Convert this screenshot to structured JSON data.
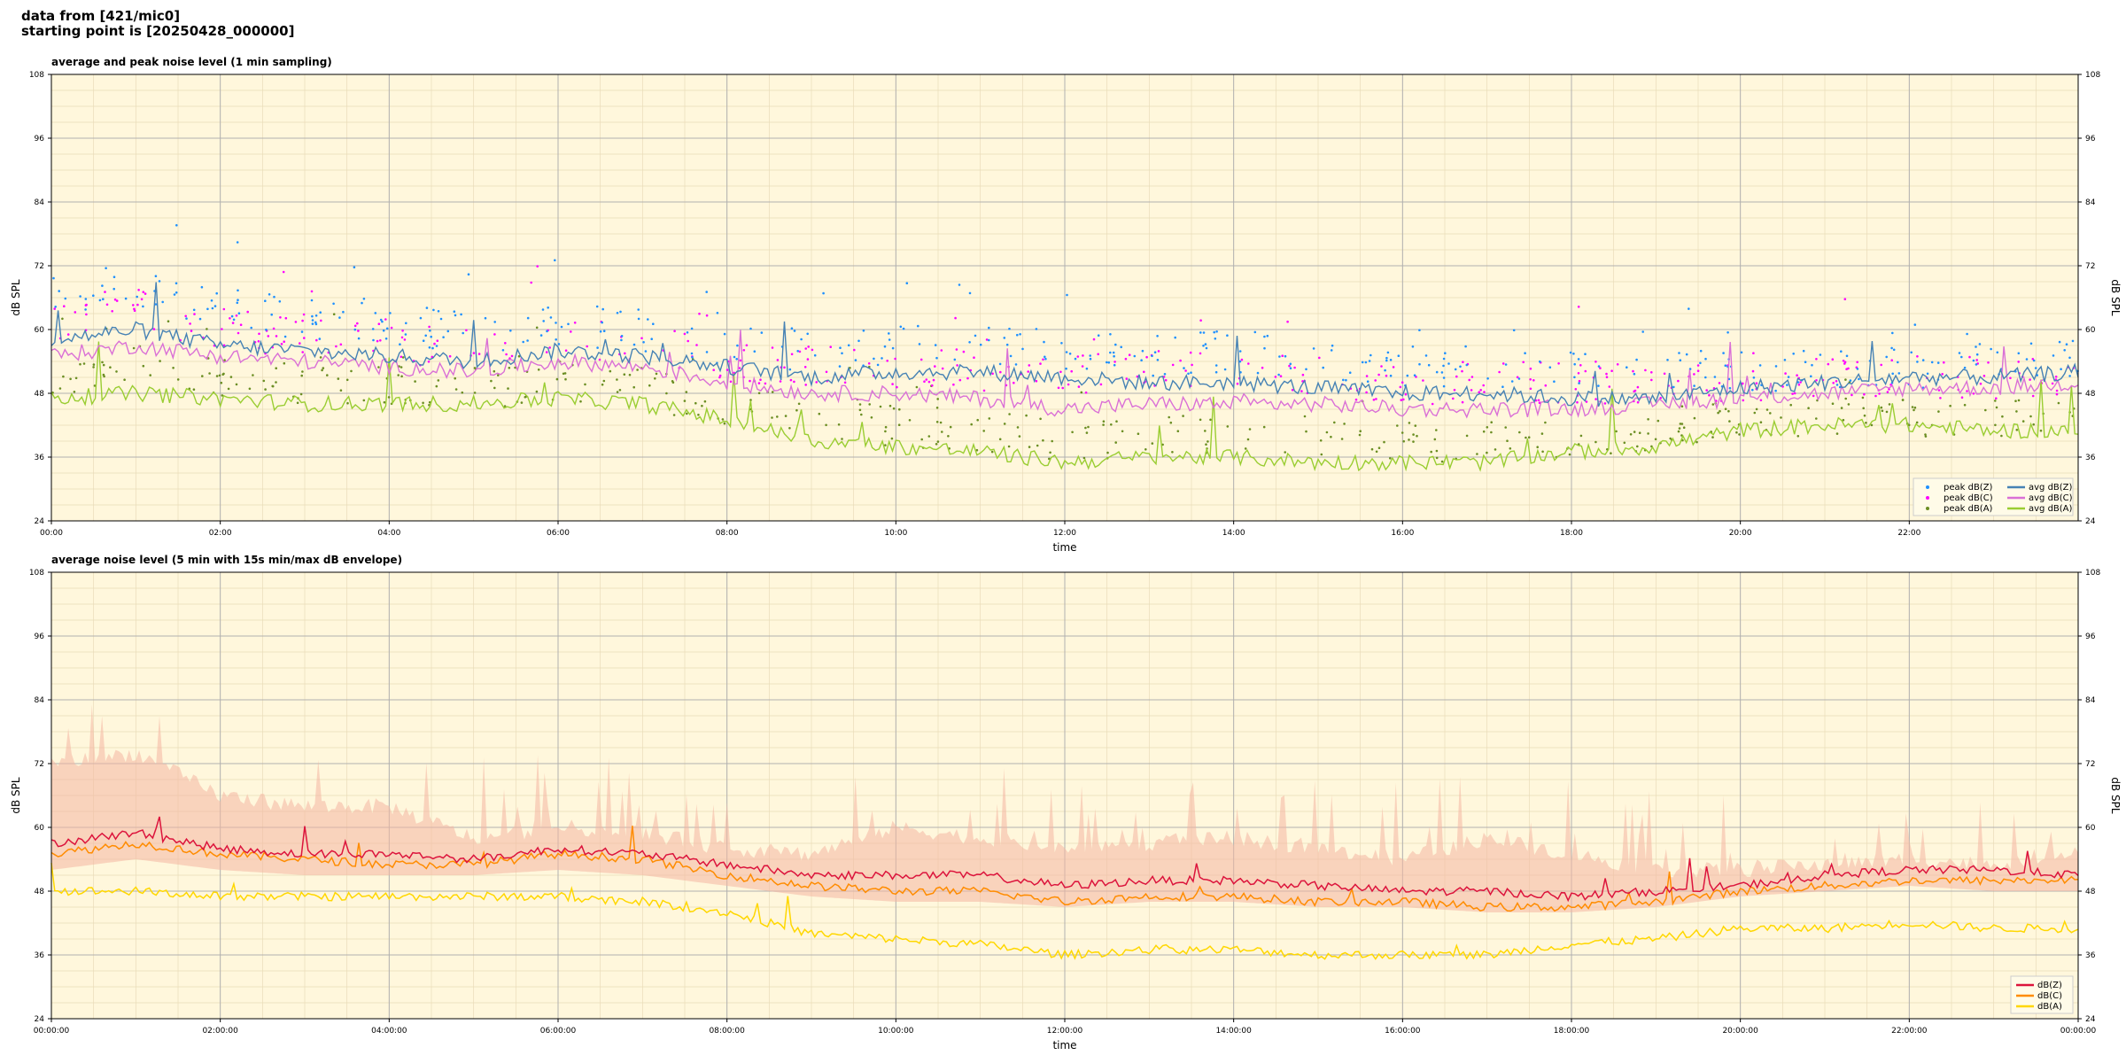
{
  "header": {
    "line1": "data from [421/mic0]",
    "line2": "starting point is [20250428_000000]"
  },
  "colors": {
    "background": "#fff7dc",
    "peak_z": "#1e90ff",
    "peak_c": "#ff00ff",
    "peak_a": "#6b8e23",
    "avg_z": "#4682b4",
    "avg_c": "#da70d6",
    "avg_a": "#9acd32",
    "dbz": "#dc143c",
    "dbc": "#ff8c00",
    "dba": "#ffd700",
    "envelope": "#f4b6a2"
  },
  "chart_data": [
    {
      "type": "line",
      "title": "average and peak noise level (1 min sampling)",
      "xlabel": "time",
      "ylabel": "dB SPL",
      "xlim": [
        0,
        24
      ],
      "ylim": [
        24,
        108
      ],
      "x_tick_values": [
        0,
        2,
        4,
        6,
        8,
        10,
        12,
        14,
        16,
        18,
        20,
        22
      ],
      "x_tick_labels": [
        "00:00",
        "02:00",
        "04:00",
        "06:00",
        "08:00",
        "10:00",
        "12:00",
        "14:00",
        "16:00",
        "18:00",
        "20:00",
        "22:00"
      ],
      "y_ticks": [
        24,
        36,
        48,
        60,
        72,
        84,
        96,
        108
      ],
      "y_tick_labels": [
        "24",
        "36",
        "48",
        "60",
        "72",
        "84",
        "96",
        "108"
      ],
      "grid": true,
      "legend_position": "lower-right",
      "legend": [
        "peak dB(Z)",
        "peak dB(C)",
        "peak dB(A)",
        "avg dB(Z)",
        "avg dB(C)",
        "avg dB(A)"
      ],
      "x_hours": [
        0,
        1,
        2,
        3,
        4,
        5,
        6,
        7,
        8,
        9,
        10,
        11,
        12,
        13,
        14,
        15,
        16,
        17,
        18,
        19,
        20,
        21,
        22,
        23,
        24
      ],
      "series": [
        {
          "key": "avg_z",
          "kind": "line",
          "values": [
            58,
            60,
            57,
            56,
            55,
            54,
            56,
            55,
            53,
            51,
            52,
            52,
            51,
            50,
            50,
            49,
            48,
            48,
            47,
            47,
            49,
            50,
            51,
            51,
            52
          ]
        },
        {
          "key": "avg_c",
          "kind": "line",
          "values": [
            55,
            57,
            55,
            54,
            53,
            52,
            54,
            53,
            50,
            48,
            48,
            47,
            45,
            46,
            46,
            46,
            45,
            45,
            45,
            46,
            47,
            48,
            49,
            49,
            50
          ]
        },
        {
          "key": "avg_a",
          "kind": "line",
          "values": [
            47,
            48,
            47,
            46,
            46,
            46,
            47,
            46,
            43,
            39,
            38,
            37,
            35,
            36,
            36,
            35,
            35,
            35,
            37,
            38,
            41,
            42,
            42,
            41,
            41
          ]
        },
        {
          "key": "peak_z",
          "kind": "scatter",
          "values": [
            66,
            68,
            64,
            62,
            61,
            59,
            61,
            60,
            57,
            56,
            57,
            57,
            56,
            55,
            56,
            55,
            53,
            53,
            52,
            52,
            52,
            52,
            53,
            53,
            55
          ]
        },
        {
          "key": "peak_c",
          "kind": "scatter",
          "values": [
            62,
            64,
            60,
            59,
            58,
            56,
            58,
            57,
            54,
            53,
            53,
            52,
            51,
            52,
            52,
            51,
            50,
            50,
            50,
            50,
            50,
            51,
            51,
            51,
            52
          ]
        },
        {
          "key": "peak_a",
          "kind": "scatter",
          "values": [
            52,
            53,
            51,
            50,
            50,
            49,
            50,
            49,
            46,
            43,
            42,
            41,
            39,
            40,
            41,
            40,
            39,
            39,
            40,
            41,
            43,
            44,
            44,
            43,
            43
          ]
        }
      ]
    },
    {
      "type": "line",
      "title": "average noise level (5 min with 15s min/max dB envelope)",
      "xlabel": "time",
      "ylabel": "dB SPL",
      "xlim": [
        0,
        24
      ],
      "ylim": [
        24,
        108
      ],
      "x_tick_values": [
        0,
        2,
        4,
        6,
        8,
        10,
        12,
        14,
        16,
        18,
        20,
        22,
        24
      ],
      "x_tick_labels": [
        "00:00:00",
        "02:00:00",
        "04:00:00",
        "06:00:00",
        "08:00:00",
        "10:00:00",
        "12:00:00",
        "14:00:00",
        "16:00:00",
        "18:00:00",
        "20:00:00",
        "22:00:00",
        "00:00:00"
      ],
      "y_ticks": [
        24,
        36,
        48,
        60,
        72,
        84,
        96,
        108
      ],
      "y_tick_labels": [
        "24",
        "36",
        "48",
        "60",
        "72",
        "84",
        "96",
        "108"
      ],
      "grid": true,
      "legend_position": "lower-right",
      "legend": [
        "dB(Z)",
        "dB(C)",
        "dB(A)"
      ],
      "x_hours": [
        0,
        1,
        2,
        3,
        4,
        5,
        6,
        7,
        8,
        9,
        10,
        11,
        12,
        13,
        14,
        15,
        16,
        17,
        18,
        19,
        20,
        21,
        22,
        23,
        24
      ],
      "series": [
        {
          "key": "dbz",
          "kind": "line",
          "values": [
            57,
            59,
            56,
            55,
            55,
            54,
            56,
            55,
            53,
            51,
            51,
            51,
            49,
            50,
            50,
            49,
            48,
            48,
            47,
            48,
            49,
            51,
            52,
            52,
            51
          ]
        },
        {
          "key": "dbc",
          "kind": "line",
          "values": [
            55,
            57,
            55,
            54,
            53,
            53,
            55,
            54,
            51,
            49,
            48,
            48,
            46,
            47,
            47,
            46,
            46,
            45,
            45,
            46,
            48,
            49,
            50,
            50,
            50
          ]
        },
        {
          "key": "dba",
          "kind": "line",
          "values": [
            48,
            48,
            47,
            47,
            47,
            47,
            47,
            46,
            44,
            40,
            39,
            38,
            36,
            37,
            37,
            36,
            36,
            36,
            38,
            39,
            41,
            41,
            42,
            41,
            41
          ]
        },
        {
          "key": "envelope_max",
          "kind": "band",
          "values": [
            72,
            74,
            66,
            64,
            64,
            58,
            60,
            59,
            56,
            55,
            60,
            58,
            56,
            57,
            58,
            56,
            54,
            58,
            55,
            52,
            52,
            53,
            54,
            53,
            56
          ]
        },
        {
          "key": "envelope_min",
          "kind": "band",
          "values": [
            52,
            54,
            52,
            51,
            51,
            51,
            52,
            51,
            49,
            47,
            46,
            46,
            45,
            46,
            46,
            45,
            45,
            44,
            44,
            45,
            47,
            48,
            49,
            48,
            48
          ]
        }
      ]
    }
  ]
}
